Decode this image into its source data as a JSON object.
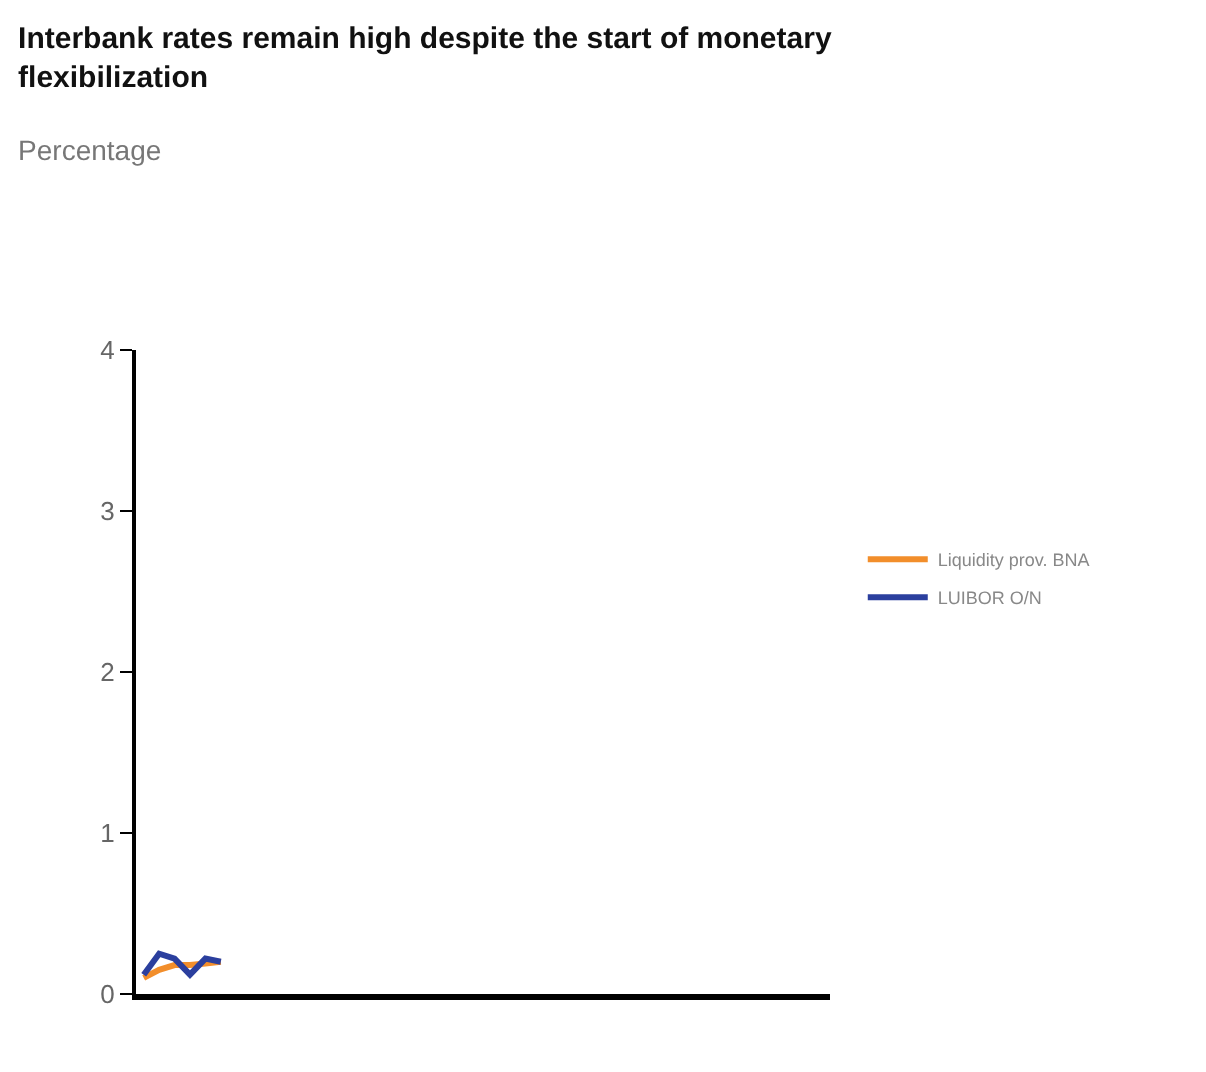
{
  "chart_data": {
    "type": "line",
    "title": "Interbank rates remain high despite the start of monetary flexibilization",
    "subtitle": "Percentage",
    "categories": [
      null,
      null,
      null,
      null,
      null,
      null,
      null,
      null,
      null,
      null,
      null,
      null,
      null,
      null,
      null,
      null,
      null,
      null,
      null,
      null,
      null,
      null,
      null,
      null,
      null,
      null,
      null,
      null,
      null,
      null,
      null,
      null,
      null,
      null,
      null,
      null,
      null,
      null,
      null,
      null,
      null,
      null,
      null,
      null,
      null
    ],
    "series": [
      {
        "name": "Liquidity prov. BNA",
        "color": "#f28e2b",
        "values": [
          0.1,
          0.15,
          0.18,
          0.18,
          0.19,
          0.2,
          null,
          null,
          null,
          null,
          null,
          null,
          null,
          null,
          null,
          null,
          null,
          null,
          null,
          null,
          null,
          null,
          null,
          null,
          null,
          null,
          null,
          null,
          null,
          null,
          null,
          null,
          null,
          null,
          null,
          null,
          null,
          null,
          null,
          null,
          null,
          null,
          null,
          null,
          null
        ]
      },
      {
        "name": "LUIBOR O/N",
        "color": "#2b3f9e",
        "values": [
          0.12,
          0.25,
          0.22,
          0.12,
          0.22,
          0.2,
          null,
          null,
          null,
          null,
          null,
          null,
          null,
          null,
          null,
          null,
          null,
          null,
          null,
          null,
          null,
          null,
          null,
          null,
          null,
          null,
          null,
          null,
          null,
          null,
          null,
          null,
          null,
          null,
          null,
          null,
          null,
          null,
          null,
          null,
          null,
          null,
          null,
          null,
          null
        ]
      }
    ],
    "ylim": [
      0,
      4
    ],
    "yticks": [
      0,
      1,
      2,
      3,
      4
    ],
    "legend": "right",
    "marker": "none",
    "line_style": "solid"
  }
}
